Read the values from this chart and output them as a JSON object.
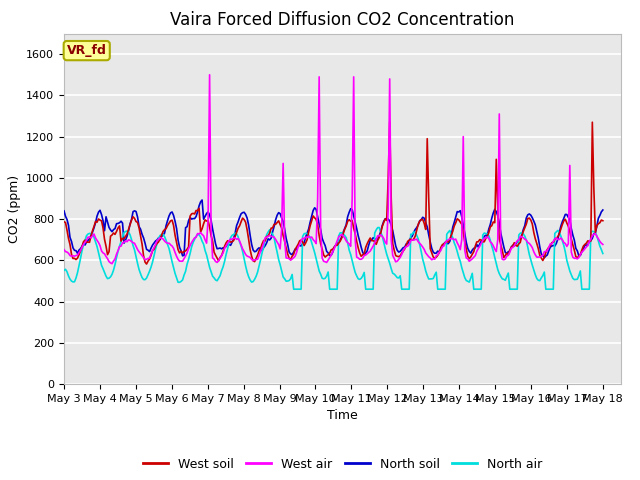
{
  "title": "Vaira Forced Diffusion CO2 Concentration",
  "xlabel": "Time",
  "ylabel": "CO2 (ppm)",
  "ylim": [
    0,
    1700
  ],
  "yticks": [
    0,
    200,
    400,
    600,
    800,
    1000,
    1200,
    1400,
    1600
  ],
  "xlim_days": [
    0,
    15.5
  ],
  "xtick_labels": [
    "May 3",
    "May 4",
    "May 5",
    "May 6",
    "May 7",
    "May 8",
    "May 9",
    "May 10",
    "May 11",
    "May 12",
    "May 13",
    "May 14",
    "May 15",
    "May 16",
    "May 17",
    "May 18"
  ],
  "legend_entries": [
    "West soil",
    "West air",
    "North soil",
    "North air"
  ],
  "colors": {
    "west_soil": "#cc0000",
    "west_air": "#ff00ff",
    "north_soil": "#0000cc",
    "north_air": "#00dddd"
  },
  "annotation_text": "VR_fd",
  "annotation_bg": "#ffff99",
  "annotation_edge": "#aaaa00",
  "bg_color": "#e8e8e8",
  "line_width": 1.2,
  "title_fontsize": 12,
  "label_fontsize": 9,
  "tick_fontsize": 8
}
